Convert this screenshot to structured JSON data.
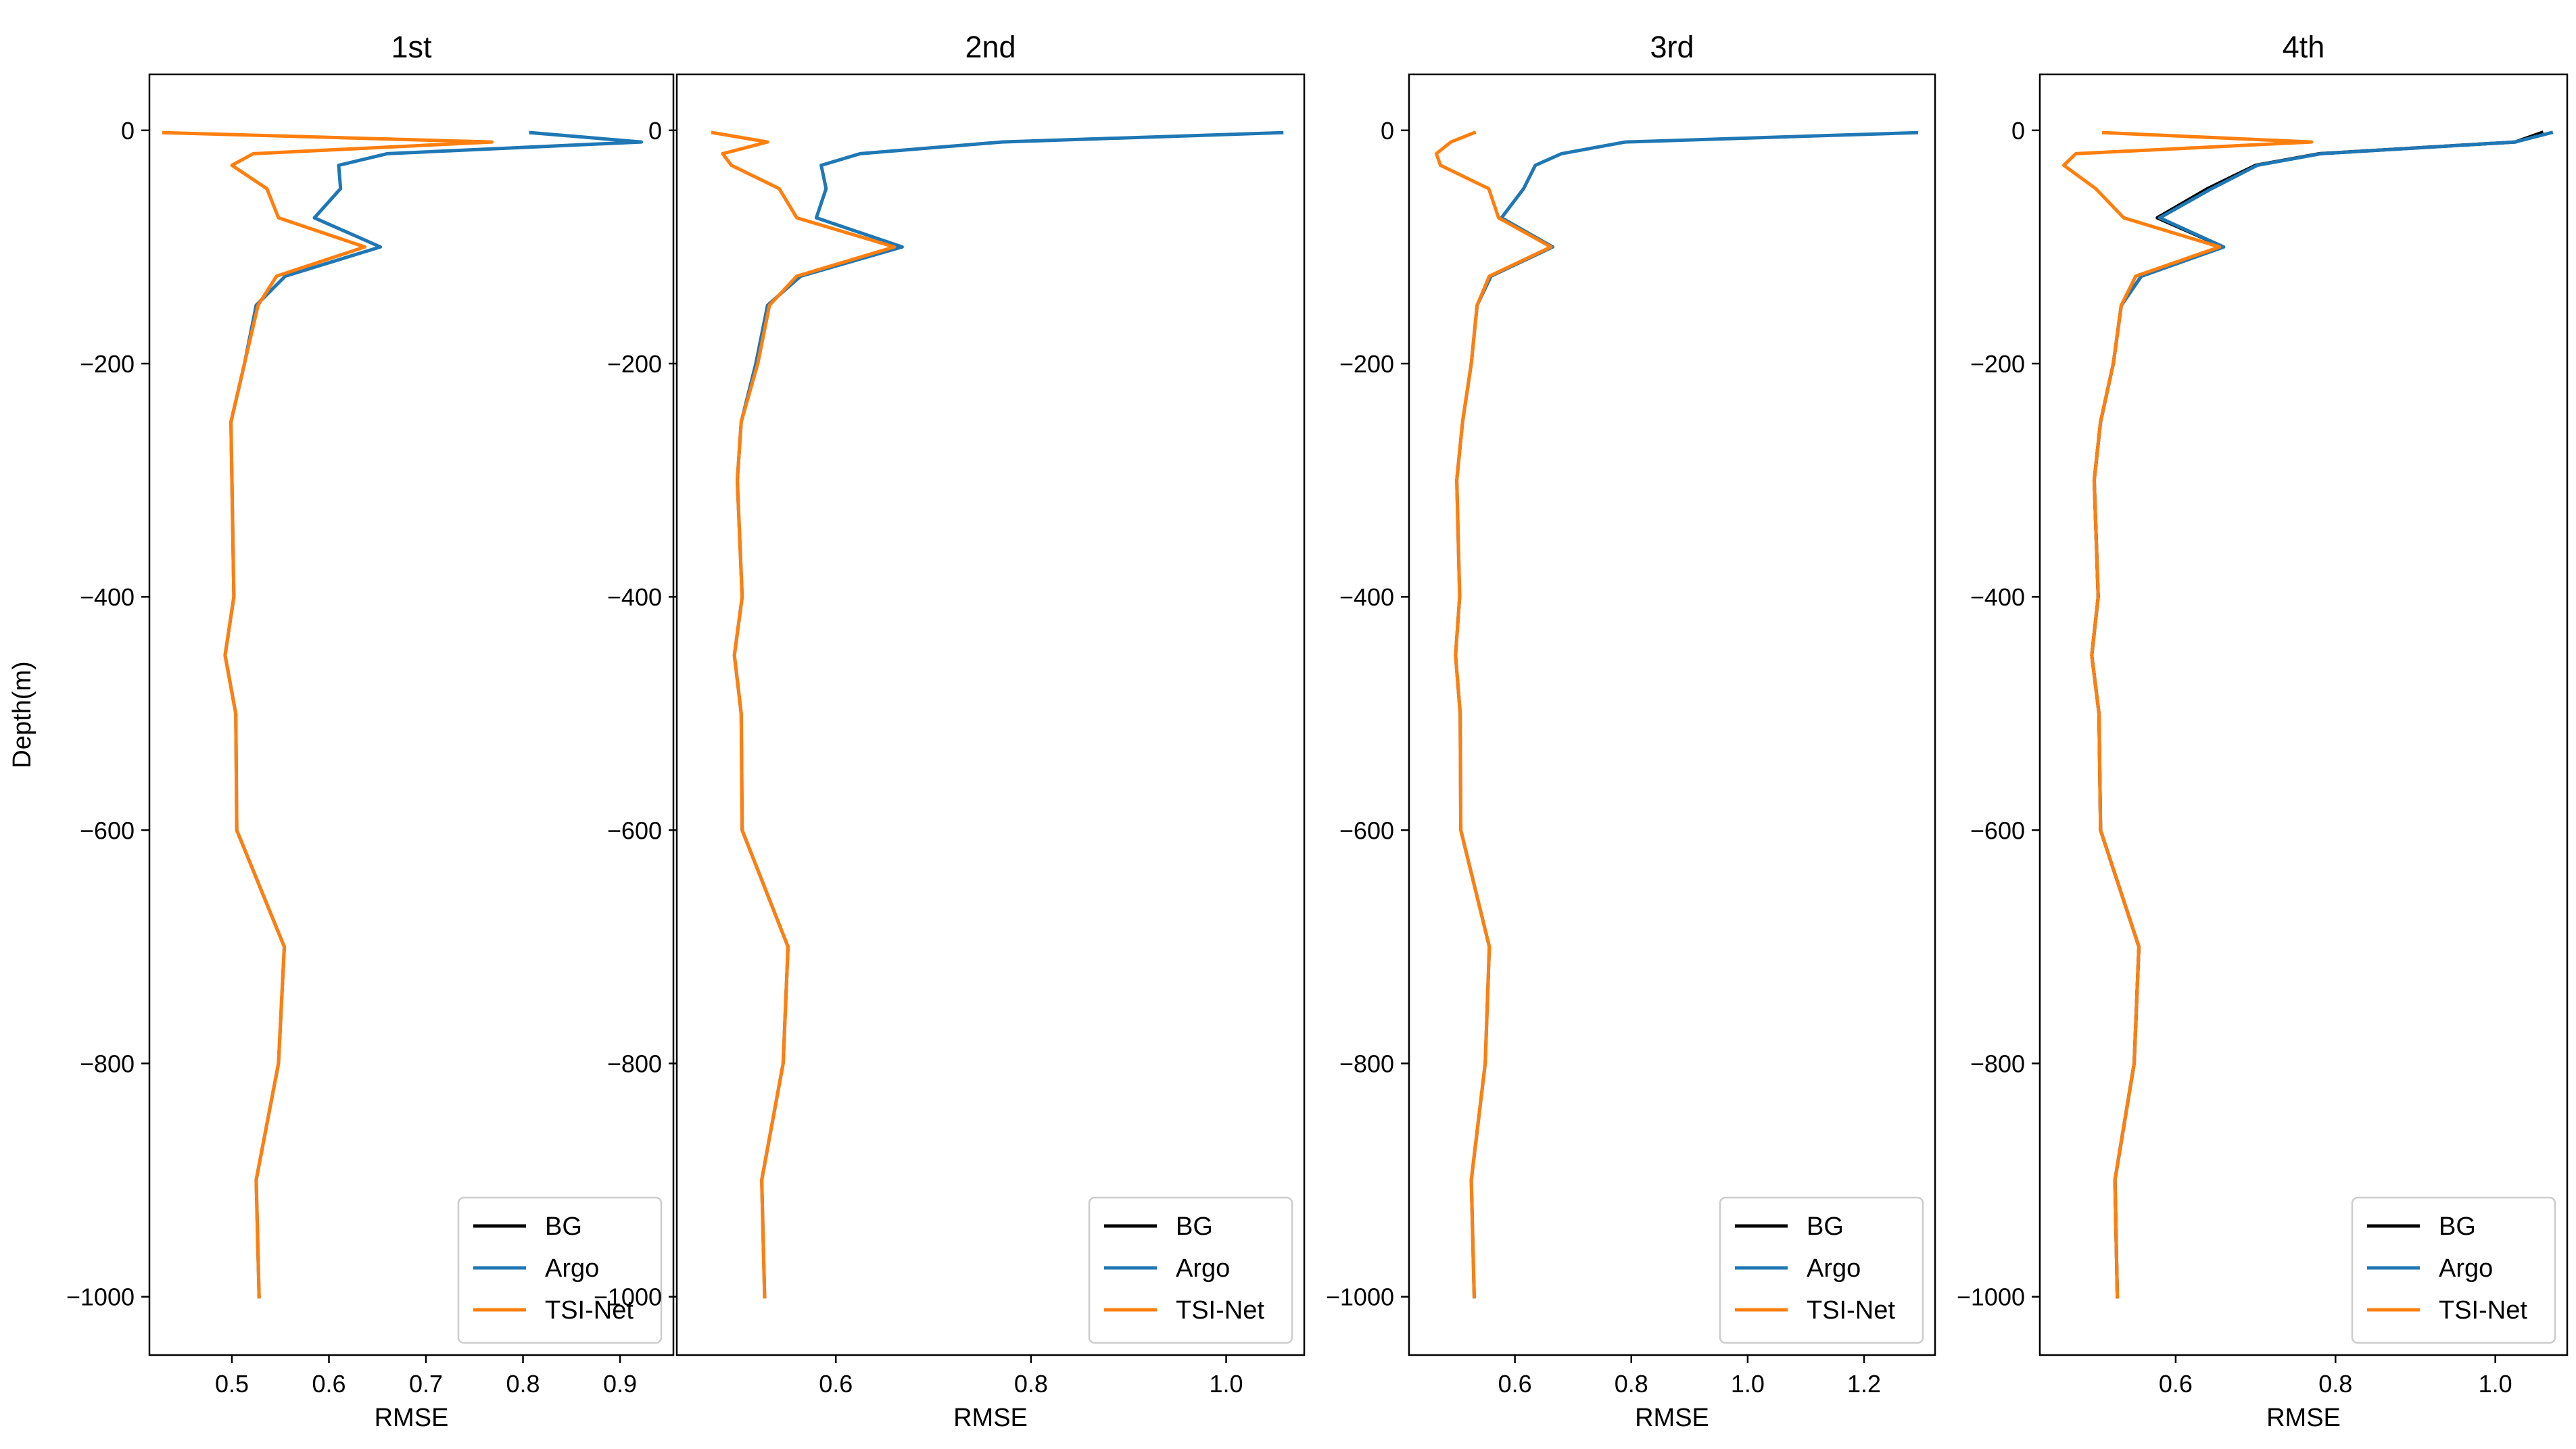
{
  "chart_data": [
    {
      "type": "line",
      "title": "1st",
      "xlabel": "RMSE",
      "ylabel": "Depth(m)",
      "xlim": [
        0.415,
        0.955
      ],
      "ylim": [
        -1050,
        48
      ],
      "xticks": [
        0.5,
        0.6,
        0.7,
        0.8,
        0.9
      ],
      "xtick_labels": [
        "0.5",
        "0.6",
        "0.7",
        "0.8",
        "0.9"
      ],
      "yticks": [
        0,
        -200,
        -400,
        -600,
        -800,
        -1000
      ],
      "ytick_labels": [
        "0",
        "−200",
        "−400",
        "−600",
        "−800",
        "−1000"
      ],
      "legend": "bottom-right",
      "series": [
        {
          "name": "BG",
          "color": "#000000",
          "x": [],
          "y": []
        },
        {
          "name": "Argo",
          "color": "#1f77b4",
          "x": [
            0.808,
            0.922,
            0.66,
            0.61,
            0.612,
            0.585,
            0.653,
            0.555,
            0.525,
            0.513,
            0.499,
            0.5,
            0.502,
            0.493,
            0.504,
            0.505,
            0.554,
            0.548,
            0.525,
            0.528
          ],
          "y": [
            -2,
            -10,
            -20,
            -30,
            -50,
            -75,
            -100,
            -125,
            -150,
            -200,
            -250,
            -300,
            -400,
            -450,
            -500,
            -600,
            -700,
            -800,
            -900,
            -1000
          ]
        },
        {
          "name": "TSI-Net",
          "color": "#ff7f0e",
          "x": [
            0.43,
            0.768,
            0.522,
            0.5,
            0.536,
            0.548,
            0.637,
            0.546,
            0.527,
            0.513,
            0.499,
            0.5,
            0.502,
            0.493,
            0.504,
            0.505,
            0.554,
            0.548,
            0.525,
            0.528
          ],
          "y": [
            -2,
            -10,
            -20,
            -30,
            -50,
            -75,
            -100,
            -125,
            -150,
            -200,
            -250,
            -300,
            -400,
            -450,
            -500,
            -600,
            -700,
            -800,
            -900,
            -1000
          ]
        }
      ]
    },
    {
      "type": "line",
      "title": "2nd",
      "xlabel": "RMSE",
      "ylabel": "",
      "xlim": [
        0.437,
        1.08
      ],
      "ylim": [
        -1050,
        48
      ],
      "xticks": [
        0.6,
        0.8,
        1.0
      ],
      "xtick_labels": [
        "0.6",
        "0.8",
        "1.0"
      ],
      "yticks": [
        0,
        -200,
        -400,
        -600,
        -800,
        -1000
      ],
      "ytick_labels": [
        "0",
        "−200",
        "−400",
        "−600",
        "−800",
        "−1000"
      ],
      "legend": "bottom-right",
      "series": [
        {
          "name": "BG",
          "color": "#000000",
          "x": [],
          "y": []
        },
        {
          "name": "Argo",
          "color": "#1f77b4",
          "x": [
            1.057,
            0.77,
            0.625,
            0.585,
            0.59,
            0.58,
            0.668,
            0.564,
            0.53,
            0.518,
            0.503,
            0.499,
            0.504,
            0.496,
            0.503,
            0.504,
            0.551,
            0.546,
            0.524,
            0.527
          ],
          "y": [
            -2,
            -10,
            -20,
            -30,
            -50,
            -75,
            -100,
            -125,
            -150,
            -200,
            -250,
            -300,
            -400,
            -450,
            -500,
            -600,
            -700,
            -800,
            -900,
            -1000
          ]
        },
        {
          "name": "TSI-Net",
          "color": "#ff7f0e",
          "x": [
            0.474,
            0.53,
            0.484,
            0.493,
            0.542,
            0.56,
            0.66,
            0.56,
            0.532,
            0.52,
            0.503,
            0.499,
            0.504,
            0.496,
            0.503,
            0.504,
            0.551,
            0.546,
            0.524,
            0.527
          ],
          "y": [
            -2,
            -10,
            -20,
            -30,
            -50,
            -75,
            -100,
            -125,
            -150,
            -200,
            -250,
            -300,
            -400,
            -450,
            -500,
            -600,
            -700,
            -800,
            -900,
            -1000
          ]
        }
      ]
    },
    {
      "type": "line",
      "title": "3rd",
      "xlabel": "RMSE",
      "ylabel": "",
      "xlim": [
        0.418,
        1.322
      ],
      "ylim": [
        -1050,
        48
      ],
      "xticks": [
        0.6,
        0.8,
        1.0,
        1.2
      ],
      "xtick_labels": [
        "0.6",
        "0.8",
        "1.0",
        "1.2"
      ],
      "yticks": [
        0,
        -200,
        -400,
        -600,
        -800,
        -1000
      ],
      "ytick_labels": [
        "0",
        "−200",
        "−400",
        "−600",
        "−800",
        "−1000"
      ],
      "legend": "bottom-right",
      "series": [
        {
          "name": "BG",
          "color": "#000000",
          "x": [],
          "y": []
        },
        {
          "name": "Argo",
          "color": "#1f77b4",
          "x": [
            1.29,
            0.79,
            0.68,
            0.635,
            0.615,
            0.577,
            0.665,
            0.559,
            0.535,
            0.525,
            0.51,
            0.5,
            0.505,
            0.498,
            0.506,
            0.507,
            0.556,
            0.549,
            0.525,
            0.53
          ],
          "y": [
            -2,
            -10,
            -20,
            -30,
            -50,
            -75,
            -100,
            -125,
            -150,
            -200,
            -250,
            -300,
            -400,
            -450,
            -500,
            -600,
            -700,
            -800,
            -900,
            -1000
          ]
        },
        {
          "name": "TSI-Net",
          "color": "#ff7f0e",
          "x": [
            0.53,
            0.49,
            0.465,
            0.472,
            0.555,
            0.572,
            0.662,
            0.556,
            0.535,
            0.525,
            0.51,
            0.5,
            0.505,
            0.498,
            0.506,
            0.507,
            0.556,
            0.549,
            0.525,
            0.53
          ],
          "y": [
            -2,
            -10,
            -20,
            -30,
            -50,
            -75,
            -100,
            -125,
            -150,
            -200,
            -250,
            -300,
            -400,
            -450,
            -500,
            -600,
            -700,
            -800,
            -900,
            -1000
          ]
        }
      ]
    },
    {
      "type": "line",
      "title": "4th",
      "xlabel": "RMSE",
      "ylabel": "",
      "xlim": [
        0.43,
        1.09
      ],
      "ylim": [
        -1050,
        48
      ],
      "xticks": [
        0.6,
        0.8,
        1.0
      ],
      "xtick_labels": [
        "0.6",
        "0.8",
        "1.0"
      ],
      "yticks": [
        0,
        -200,
        -400,
        -600,
        -800,
        -1000
      ],
      "ytick_labels": [
        "0",
        "−200",
        "−400",
        "−600",
        "−800",
        "−1000"
      ],
      "legend": "bottom-right",
      "series": [
        {
          "name": "BG",
          "color": "#000000",
          "x": [
            1.058,
            1.025,
            0.78,
            0.7,
            0.64,
            0.577,
            0.66,
            0.557,
            0.532,
            0.522,
            0.506,
            0.498,
            0.503,
            0.495,
            0.504,
            0.506,
            0.554,
            0.548,
            0.524,
            0.527
          ],
          "y": [
            -2,
            -10,
            -20,
            -30,
            -50,
            -75,
            -100,
            -125,
            -150,
            -200,
            -250,
            -300,
            -400,
            -450,
            -500,
            -600,
            -700,
            -800,
            -900,
            -1000
          ]
        },
        {
          "name": "Argo",
          "color": "#1f77b4",
          "x": [
            1.07,
            1.025,
            0.782,
            0.702,
            0.645,
            0.58,
            0.66,
            0.557,
            0.532,
            0.522,
            0.506,
            0.498,
            0.503,
            0.495,
            0.504,
            0.506,
            0.554,
            0.548,
            0.524,
            0.527
          ],
          "y": [
            -2,
            -10,
            -20,
            -30,
            -50,
            -75,
            -100,
            -125,
            -150,
            -200,
            -250,
            -300,
            -400,
            -450,
            -500,
            -600,
            -700,
            -800,
            -900,
            -1000
          ]
        },
        {
          "name": "TSI-Net",
          "color": "#ff7f0e",
          "x": [
            0.51,
            0.77,
            0.475,
            0.46,
            0.5,
            0.535,
            0.655,
            0.55,
            0.532,
            0.522,
            0.506,
            0.498,
            0.503,
            0.495,
            0.504,
            0.506,
            0.554,
            0.548,
            0.524,
            0.527
          ],
          "y": [
            -2,
            -10,
            -20,
            -30,
            -50,
            -75,
            -100,
            -125,
            -150,
            -200,
            -250,
            -300,
            -400,
            -450,
            -500,
            -600,
            -700,
            -800,
            -900,
            -1000
          ]
        }
      ]
    }
  ]
}
